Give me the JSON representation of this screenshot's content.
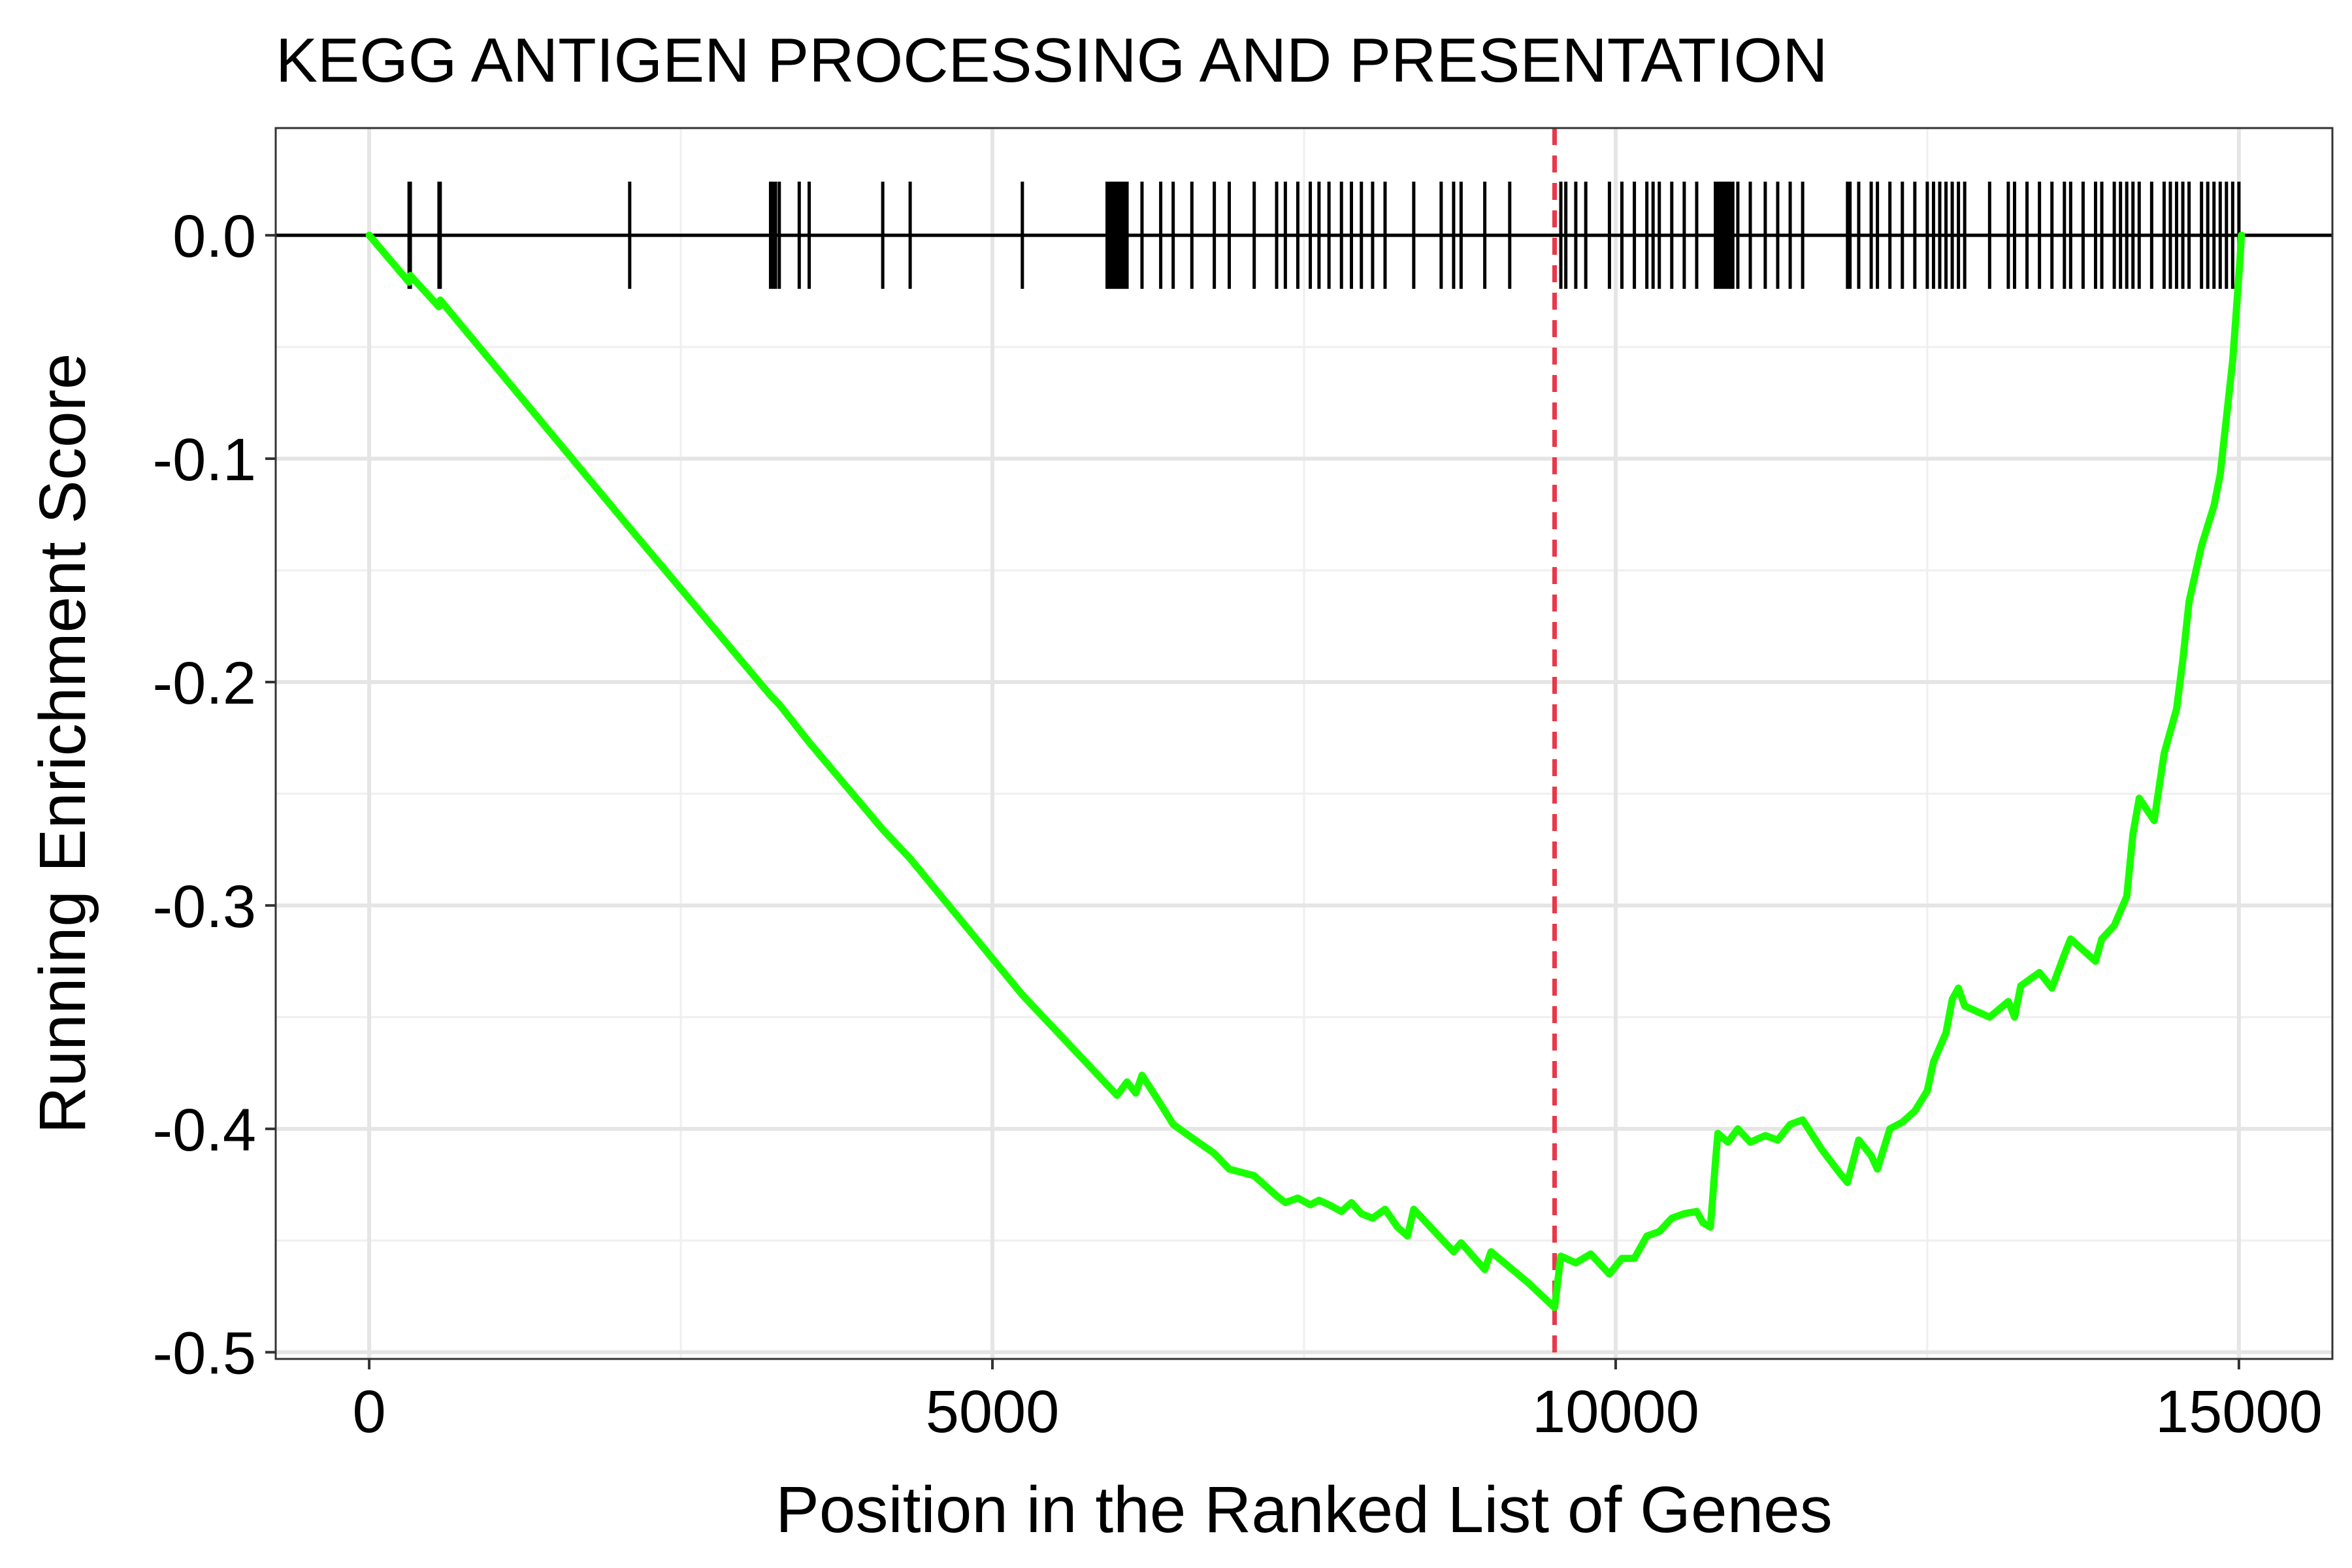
{
  "chart_data": {
    "type": "line",
    "title": "KEGG ANTIGEN PROCESSING AND PRESENTATION",
    "xlabel": "Position in the Ranked List of Genes",
    "ylabel": "Running Enrichment Score",
    "xlim": [
      -750,
      15750
    ],
    "ylim": [
      -0.503,
      0.048
    ],
    "x_ticks": [
      0,
      5000,
      10000,
      15000
    ],
    "x_tick_labels": [
      "0",
      "5000",
      "10000",
      "15000"
    ],
    "y_ticks": [
      0.0,
      -0.1,
      -0.2,
      -0.3,
      -0.4,
      -0.5
    ],
    "y_tick_labels": [
      "0.0",
      "-0.1",
      "-0.2",
      "-0.3",
      "-0.4",
      "-0.5"
    ],
    "grid": true,
    "line_color": "#1aff00",
    "vline_color": "#e8394a",
    "vline_x": 9510,
    "series": [
      {
        "values": [
          [
            0,
            0.0
          ],
          [
            320,
            -0.021
          ],
          [
            330,
            -0.018
          ],
          [
            560,
            -0.032
          ],
          [
            570,
            -0.029
          ],
          [
            2090,
            -0.131
          ],
          [
            3220,
            -0.206
          ],
          [
            3290,
            -0.21
          ],
          [
            3530,
            -0.227
          ],
          [
            4120,
            -0.266
          ],
          [
            4340,
            -0.279
          ],
          [
            5240,
            -0.34
          ],
          [
            6000,
            -0.385
          ],
          [
            6080,
            -0.379
          ],
          [
            6150,
            -0.384
          ],
          [
            6200,
            -0.376
          ],
          [
            6350,
            -0.389
          ],
          [
            6450,
            -0.398
          ],
          [
            6600,
            -0.404
          ],
          [
            6780,
            -0.411
          ],
          [
            6900,
            -0.418
          ],
          [
            7100,
            -0.421
          ],
          [
            7280,
            -0.43
          ],
          [
            7350,
            -0.433
          ],
          [
            7450,
            -0.431
          ],
          [
            7550,
            -0.434
          ],
          [
            7620,
            -0.432
          ],
          [
            7700,
            -0.434
          ],
          [
            7800,
            -0.437
          ],
          [
            7880,
            -0.433
          ],
          [
            7960,
            -0.438
          ],
          [
            8050,
            -0.44
          ],
          [
            8150,
            -0.436
          ],
          [
            8250,
            -0.444
          ],
          [
            8330,
            -0.448
          ],
          [
            8380,
            -0.436
          ],
          [
            8700,
            -0.455
          ],
          [
            8760,
            -0.451
          ],
          [
            8950,
            -0.463
          ],
          [
            9000,
            -0.455
          ],
          [
            9150,
            -0.462
          ],
          [
            9300,
            -0.469
          ],
          [
            9510,
            -0.48
          ],
          [
            9560,
            -0.457
          ],
          [
            9680,
            -0.46
          ],
          [
            9800,
            -0.456
          ],
          [
            9950,
            -0.465
          ],
          [
            10050,
            -0.458
          ],
          [
            10150,
            -0.458
          ],
          [
            10250,
            -0.448
          ],
          [
            10350,
            -0.446
          ],
          [
            10450,
            -0.44
          ],
          [
            10550,
            -0.438
          ],
          [
            10650,
            -0.437
          ],
          [
            10700,
            -0.442
          ],
          [
            10760,
            -0.444
          ],
          [
            10800,
            -0.415
          ],
          [
            10820,
            -0.402
          ],
          [
            10900,
            -0.406
          ],
          [
            10980,
            -0.4
          ],
          [
            11080,
            -0.406
          ],
          [
            11200,
            -0.403
          ],
          [
            11300,
            -0.405
          ],
          [
            11400,
            -0.398
          ],
          [
            11500,
            -0.396
          ],
          [
            11650,
            -0.409
          ],
          [
            11800,
            -0.42
          ],
          [
            11860,
            -0.424
          ],
          [
            11950,
            -0.405
          ],
          [
            12050,
            -0.412
          ],
          [
            12100,
            -0.418
          ],
          [
            12200,
            -0.4
          ],
          [
            12300,
            -0.397
          ],
          [
            12400,
            -0.392
          ],
          [
            12500,
            -0.383
          ],
          [
            12550,
            -0.37
          ],
          [
            12650,
            -0.357
          ],
          [
            12700,
            -0.342
          ],
          [
            12750,
            -0.337
          ],
          [
            12800,
            -0.345
          ],
          [
            13000,
            -0.35
          ],
          [
            13150,
            -0.343
          ],
          [
            13200,
            -0.35
          ],
          [
            13250,
            -0.336
          ],
          [
            13400,
            -0.33
          ],
          [
            13500,
            -0.337
          ],
          [
            13600,
            -0.322
          ],
          [
            13650,
            -0.315
          ],
          [
            13750,
            -0.32
          ],
          [
            13850,
            -0.325
          ],
          [
            13900,
            -0.315
          ],
          [
            14000,
            -0.309
          ],
          [
            14100,
            -0.296
          ],
          [
            14150,
            -0.268
          ],
          [
            14200,
            -0.252
          ],
          [
            14320,
            -0.262
          ],
          [
            14400,
            -0.232
          ],
          [
            14500,
            -0.212
          ],
          [
            14550,
            -0.19
          ],
          [
            14600,
            -0.164
          ],
          [
            14700,
            -0.139
          ],
          [
            14800,
            -0.121
          ],
          [
            14850,
            -0.107
          ],
          [
            14950,
            -0.056
          ],
          [
            15010,
            -0.01
          ],
          [
            15020,
            0.0
          ]
        ]
      }
    ],
    "hits": [
      320,
      330,
      560,
      570,
      2090,
      3220,
      3240,
      3260,
      3290,
      3450,
      3530,
      4120,
      4340,
      5240,
      5920,
      5940,
      5960,
      5980,
      6000,
      6020,
      6040,
      6060,
      6080,
      6200,
      6350,
      6450,
      6600,
      6780,
      6900,
      7100,
      7280,
      7350,
      7450,
      7550,
      7620,
      7700,
      7800,
      7880,
      7960,
      8050,
      8150,
      8380,
      8600,
      8700,
      8760,
      8950,
      9150,
      9560,
      9600,
      9680,
      9760,
      9950,
      10050,
      10150,
      10250,
      10300,
      10350,
      10450,
      10550,
      10650,
      10800,
      10820,
      10840,
      10860,
      10880,
      10900,
      10920,
      10940,
      10980,
      11080,
      11200,
      11300,
      11400,
      11500,
      11860,
      11880,
      11950,
      12050,
      12100,
      12200,
      12300,
      12400,
      12500,
      12550,
      12600,
      12650,
      12700,
      12750,
      12800,
      13000,
      13150,
      13200,
      13300,
      13400,
      13500,
      13600,
      13650,
      13750,
      13850,
      13900,
      14000,
      14050,
      14100,
      14150,
      14200,
      14300,
      14400,
      14450,
      14500,
      14550,
      14600,
      14700,
      14750,
      14800,
      14850,
      14900,
      14950,
      15000
    ]
  }
}
